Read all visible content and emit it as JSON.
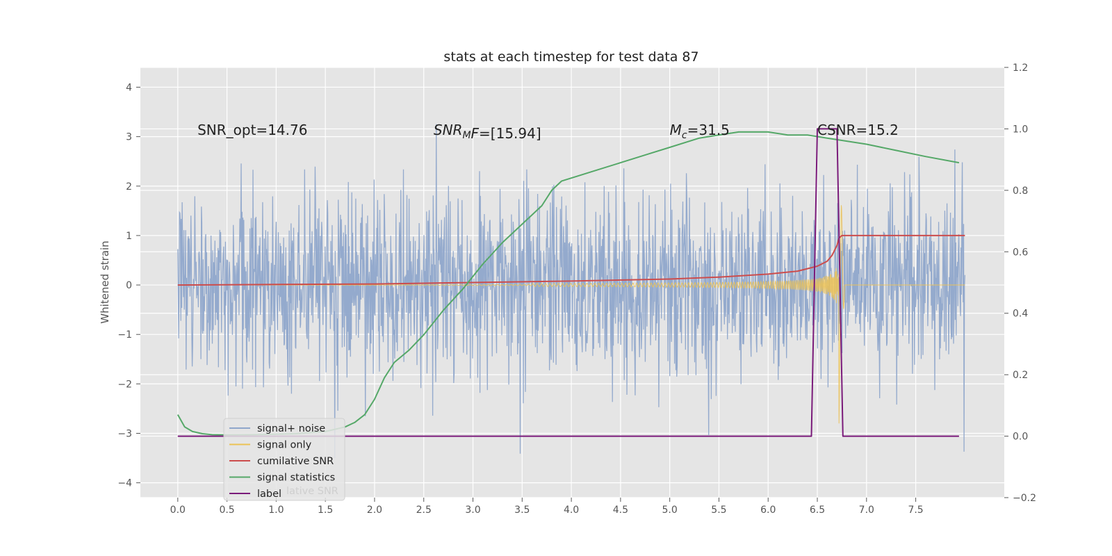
{
  "chart_data": {
    "type": "line",
    "title": "stats at each timestep for test data 87",
    "xlabel": "",
    "ylabel": "Whitened strain",
    "y2label": "",
    "xlim": [
      -0.38,
      8.4
    ],
    "ylim": [
      -4.3,
      4.4
    ],
    "y2lim": [
      -0.2,
      1.2
    ],
    "x_ticks": [
      "0.0",
      "0.5",
      "1.0",
      "1.5",
      "2.0",
      "2.5",
      "3.0",
      "3.5",
      "4.0",
      "4.5",
      "5.0",
      "5.5",
      "6.0",
      "6.5",
      "7.0",
      "7.5"
    ],
    "y_ticks": [
      "−4",
      "−3",
      "−2",
      "−1",
      "0",
      "1",
      "2",
      "3",
      "4"
    ],
    "y2_ticks": [
      "−0.2",
      "0.0",
      "0.2",
      "0.4",
      "0.6",
      "0.8",
      "1.0",
      "1.2"
    ],
    "grid": true,
    "legend_position": "lower-left",
    "annotations": [
      {
        "text": "SNR_opt=14.76",
        "x": 0.2,
        "y": 3.15
      },
      {
        "text": "SNR",
        "sub": "M",
        "rest": "F=[15.94]",
        "italic": true,
        "x": 2.6,
        "y": 3.15
      },
      {
        "text": "M",
        "sub": "c",
        "rest": "=31.5",
        "italic": true,
        "x": 5.0,
        "y": 3.15
      },
      {
        "text": "CSNR=15.2",
        "x": 6.5,
        "y": 3.15
      }
    ],
    "legend_ghost_text": "lative SNR",
    "series": [
      {
        "name": "signal+ noise",
        "color": "#8fa6cb",
        "axis": "left",
        "kind": "noise",
        "x_range": [
          0.0,
          8.0
        ],
        "noise_std": 0.92,
        "y_min": -3.5,
        "y_max": 4.0
      },
      {
        "name": "signal only",
        "color": "#ecc255",
        "axis": "left",
        "kind": "chirp",
        "x_range": [
          0.0,
          8.0
        ],
        "peak_time": 6.72,
        "peak_amplitude": 2.8
      },
      {
        "name": "cumilative SNR",
        "color": "#cc4c4c",
        "axis": "left",
        "x": [
          0.0,
          1.0,
          2.0,
          3.0,
          4.0,
          5.0,
          5.5,
          6.0,
          6.3,
          6.5,
          6.6,
          6.65,
          6.7,
          6.72,
          6.75,
          7.0,
          7.5,
          8.0
        ],
        "y": [
          0.0,
          0.01,
          0.02,
          0.05,
          0.08,
          0.12,
          0.16,
          0.22,
          0.28,
          0.38,
          0.48,
          0.6,
          0.8,
          0.95,
          1.0,
          1.0,
          1.0,
          1.0
        ]
      },
      {
        "name": "signal statistics",
        "color": "#55a868",
        "axis": "right",
        "x": [
          0.0,
          0.07,
          0.15,
          0.25,
          0.35,
          0.5,
          0.8,
          1.2,
          1.5,
          1.7,
          1.8,
          1.9,
          2.0,
          2.1,
          2.2,
          2.35,
          2.5,
          2.7,
          2.9,
          3.1,
          3.3,
          3.5,
          3.7,
          3.8,
          3.9,
          4.2,
          4.5,
          4.8,
          5.0,
          5.3,
          5.5,
          5.7,
          6.0,
          6.2,
          6.4,
          6.6,
          6.8,
          7.0,
          7.3,
          7.6,
          7.94
        ],
        "y": [
          0.07,
          0.03,
          0.015,
          0.008,
          0.005,
          0.004,
          0.005,
          0.008,
          0.015,
          0.03,
          0.045,
          0.07,
          0.12,
          0.19,
          0.24,
          0.28,
          0.33,
          0.41,
          0.48,
          0.56,
          0.63,
          0.69,
          0.75,
          0.8,
          0.83,
          0.86,
          0.89,
          0.92,
          0.94,
          0.97,
          0.98,
          0.99,
          0.99,
          0.98,
          0.98,
          0.97,
          0.96,
          0.95,
          0.93,
          0.91,
          0.89
        ]
      },
      {
        "name": "label",
        "color": "#7a1a7a",
        "axis": "right",
        "x": [
          0.0,
          6.44,
          6.5,
          6.7,
          6.76,
          7.94
        ],
        "y": [
          0.0,
          0.0,
          1.0,
          1.0,
          0.0,
          0.0
        ]
      }
    ]
  }
}
